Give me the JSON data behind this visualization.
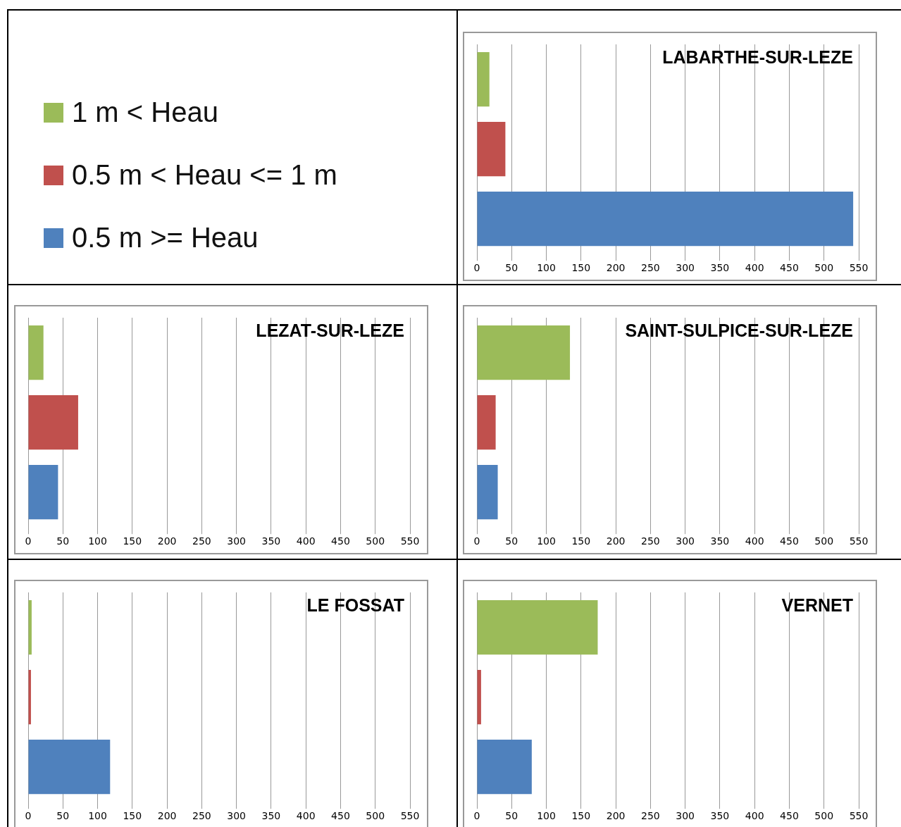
{
  "chart_data": [
    {
      "type": "other",
      "categories": [
        "1 m < Heau",
        "0.5 m < Heau <= 1 m",
        "0.5 m >= Heau"
      ],
      "colors": [
        "#9bbb59",
        "#c0504d",
        "#4f81bd"
      ]
    },
    {
      "type": "bar",
      "orientation": "horizontal",
      "title": "LABARTHE-SUR-LEZE",
      "categories": [
        null,
        null,
        null
      ],
      "values": [
        18,
        41,
        542
      ],
      "colors": [
        "#9bbb59",
        "#c0504d",
        "#4f81bd"
      ],
      "xlim": [
        0,
        550
      ],
      "xticks": [
        0,
        50,
        100,
        150,
        200,
        250,
        300,
        350,
        400,
        450,
        500,
        550
      ],
      "grid": "x",
      "tick_labels": "x"
    },
    {
      "type": "bar",
      "orientation": "horizontal",
      "title": "LEZAT-SUR-LEZE",
      "categories": [
        null,
        null,
        null
      ],
      "values": [
        22,
        72,
        43
      ],
      "colors": [
        "#9bbb59",
        "#c0504d",
        "#4f81bd"
      ],
      "xlim": [
        0,
        550
      ],
      "xticks": [
        0,
        50,
        100,
        150,
        200,
        250,
        300,
        350,
        400,
        450,
        500,
        550
      ],
      "grid": "x",
      "tick_labels": "x"
    },
    {
      "type": "bar",
      "orientation": "horizontal",
      "title": "SAINT-SULPICE-SUR-LEZE",
      "categories": [
        null,
        null,
        null
      ],
      "values": [
        134,
        27,
        30
      ],
      "colors": [
        "#9bbb59",
        "#c0504d",
        "#4f81bd"
      ],
      "xlim": [
        0,
        550
      ],
      "xticks": [
        0,
        50,
        100,
        150,
        200,
        250,
        300,
        350,
        400,
        450,
        500,
        550
      ],
      "grid": "x",
      "tick_labels": "x"
    },
    {
      "type": "bar",
      "orientation": "horizontal",
      "title": "LE FOSSAT",
      "categories": [
        null,
        null,
        null
      ],
      "values": [
        5,
        4,
        118
      ],
      "colors": [
        "#9bbb59",
        "#c0504d",
        "#4f81bd"
      ],
      "xlim": [
        0,
        550
      ],
      "xticks": [
        0,
        50,
        100,
        150,
        200,
        250,
        300,
        350,
        400,
        450,
        500,
        550
      ],
      "grid": "x",
      "tick_labels": "x"
    },
    {
      "type": "bar",
      "orientation": "horizontal",
      "title": "VERNET",
      "categories": [
        null,
        null,
        null
      ],
      "values": [
        174,
        6,
        79
      ],
      "colors": [
        "#9bbb59",
        "#c0504d",
        "#4f81bd"
      ],
      "xlim": [
        0,
        550
      ],
      "xticks": [
        0,
        50,
        100,
        150,
        200,
        250,
        300,
        350,
        400,
        450,
        500,
        550
      ],
      "grid": "x",
      "tick_labels": "x"
    }
  ]
}
